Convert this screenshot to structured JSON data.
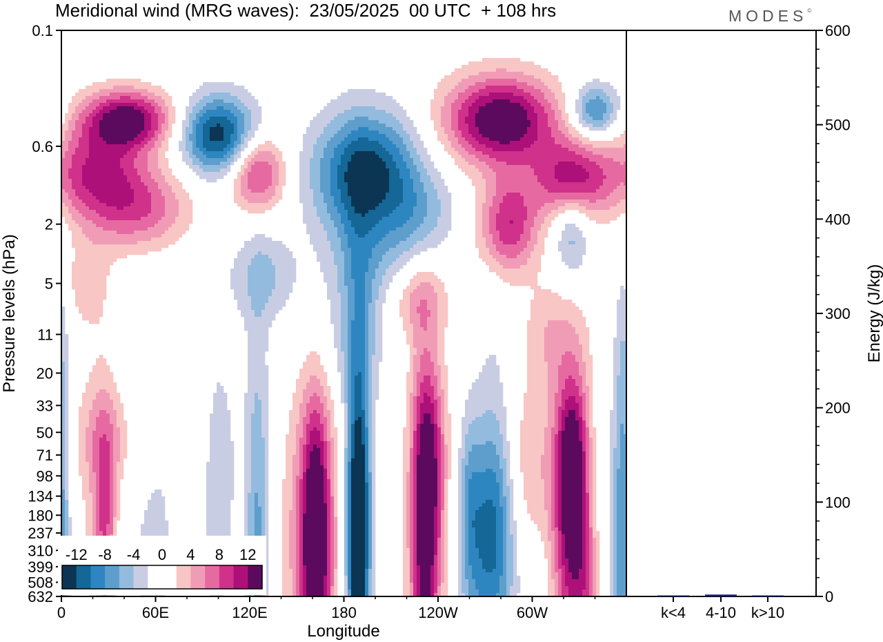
{
  "title": "Meridional wind (MRG waves):  23/05/2025  00 UTC  + 108 hrs",
  "logo": "MODES",
  "logo_mark": "©",
  "colors": {
    "neg": [
      "#0b3553",
      "#146796",
      "#2e86c1",
      "#5d9ecd",
      "#93bbdd",
      "#c9cde4"
    ],
    "pos": [
      "#f8c6c4",
      "#f19cb6",
      "#e66aa1",
      "#d0318a",
      "#ad1078",
      "#5c0a5e"
    ],
    "bar": "#1a1f6e"
  },
  "chart_data": [
    {
      "type": "heatmap",
      "title": "Meridional wind (MRG waves):  23/05/2025  00 UTC  + 108 hrs",
      "xlabel": "Longitude",
      "ylabel": "Pressure levels (hPa)",
      "x_ticks": [
        "0",
        "60E",
        "120E",
        "180",
        "120W",
        "60W"
      ],
      "x_tick_degrees": [
        0,
        60,
        120,
        180,
        240,
        300
      ],
      "x_range_degrees": [
        0,
        360
      ],
      "y_ticks": [
        "0.1",
        "0.6",
        "2",
        "5",
        "11",
        "20",
        "33",
        "50",
        "71",
        "98",
        "134",
        "180",
        "237",
        "310",
        "399",
        "508",
        "632"
      ],
      "colorbar_ticks": [
        "-12",
        "-8",
        "-4",
        "0",
        "4",
        "8",
        "12"
      ],
      "blobs": [
        {
          "lon": 42,
          "lev": 0.4,
          "w": 34,
          "h": 0.55,
          "v": 14
        },
        {
          "lon": 100,
          "lev": 0.5,
          "w": 28,
          "h": 0.7,
          "v": -13
        },
        {
          "lon": 20,
          "lev": 0.9,
          "w": 38,
          "h": 0.8,
          "v": 9
        },
        {
          "lon": 125,
          "lev": 0.9,
          "w": 20,
          "h": 0.7,
          "v": 10
        },
        {
          "lon": 195,
          "lev": 0.9,
          "w": 40,
          "h": 1.1,
          "v": -13
        },
        {
          "lon": 280,
          "lev": 0.4,
          "w": 42,
          "h": 0.8,
          "v": 15
        },
        {
          "lon": 325,
          "lev": 1.0,
          "w": 28,
          "h": 0.7,
          "v": 11
        },
        {
          "lon": 340,
          "lev": 0.35,
          "w": 18,
          "h": 0.5,
          "v": -9
        },
        {
          "lon": 50,
          "lev": 1.6,
          "w": 38,
          "h": 0.8,
          "v": 8
        },
        {
          "lon": 230,
          "lev": 1.8,
          "w": 24,
          "h": 0.8,
          "v": -4
        },
        {
          "lon": 285,
          "lev": 2.0,
          "w": 22,
          "h": 0.9,
          "v": 10
        },
        {
          "lon": 325,
          "lev": 2.3,
          "w": 14,
          "h": 0.9,
          "v": -6
        },
        {
          "lon": 15,
          "lev": 5.0,
          "w": 18,
          "h": 0.8,
          "v": 3
        },
        {
          "lon": 195,
          "lev": 4.0,
          "w": 34,
          "h": 1.2,
          "v": -5
        },
        {
          "lon": 225,
          "lev": 6.5,
          "w": 24,
          "h": 0.7,
          "v": 5
        },
        {
          "lon": 130,
          "lev": 4.5,
          "w": 25,
          "h": 0.8,
          "v": -4
        },
        {
          "lon": 310,
          "lev": 11.0,
          "w": 18,
          "h": 0.9,
          "v": 3
        },
        {
          "lon": 180,
          "lev": 14.0,
          "w": 30,
          "h": 0.9,
          "v": -2
        },
        {
          "lon": 30,
          "lev": 55.0,
          "w": 25,
          "h": 1.0,
          "v": 4
        },
        {
          "lon": 235,
          "lev": 50.0,
          "w": 14,
          "h": 1.4,
          "v": 3
        },
        {
          "lon": 325,
          "lev": 70.0,
          "w": 12,
          "h": 1.4,
          "v": 6
        },
        {
          "lon": 190,
          "lev": 60.0,
          "w": 12,
          "h": 3.2,
          "v": -2
        },
        {
          "lon": 25,
          "lev": 180.0,
          "w": 14,
          "h": 3.5,
          "v": 3
        },
        {
          "lon": 28,
          "lev": 240.0,
          "w": 8,
          "h": 1.8,
          "v": 6
        },
        {
          "lon": 160,
          "lev": 260.0,
          "w": 22,
          "h": 3.0,
          "v": 7
        },
        {
          "lon": 162,
          "lev": 260.0,
          "w": 10,
          "h": 2.4,
          "v": 12
        },
        {
          "lon": 189,
          "lev": 230.0,
          "w": 11,
          "h": 4.5,
          "v": -7
        },
        {
          "lon": 189,
          "lev": 260.0,
          "w": 7,
          "h": 2.4,
          "v": -11
        },
        {
          "lon": 232,
          "lev": 260.0,
          "w": 14,
          "h": 4.0,
          "v": 5
        },
        {
          "lon": 230,
          "lev": 300.0,
          "w": 9,
          "h": 3.0,
          "v": 7
        },
        {
          "lon": 236,
          "lev": 140.0,
          "w": 10,
          "h": 2.0,
          "v": 6
        },
        {
          "lon": 275,
          "lev": 240.0,
          "w": 20,
          "h": 1.9,
          "v": -8
        },
        {
          "lon": 275,
          "lev": 180.0,
          "w": 14,
          "h": 4.0,
          "v": -3
        },
        {
          "lon": 260,
          "lev": 130.0,
          "w": 8,
          "h": 1.6,
          "v": -4
        },
        {
          "lon": 326,
          "lev": 180.0,
          "w": 14,
          "h": 2.4,
          "v": 9
        },
        {
          "lon": 326,
          "lev": 220.0,
          "w": 22,
          "h": 4.0,
          "v": 4
        },
        {
          "lon": 296,
          "lev": 100.0,
          "w": 18,
          "h": 1.8,
          "v": 4
        },
        {
          "lon": 125,
          "lev": 330.0,
          "w": 9,
          "h": 4.0,
          "v": -6
        },
        {
          "lon": 100,
          "lev": 330.0,
          "w": 9,
          "h": 3.0,
          "v": -3
        },
        {
          "lon": 105,
          "lev": 110.0,
          "w": 10,
          "h": 1.8,
          "v": -3
        },
        {
          "lon": 55,
          "lev": 250.0,
          "w": 25,
          "h": 6.0,
          "v": -2
        },
        {
          "lon": 100,
          "lev": 260.0,
          "w": 40,
          "h": 6.0,
          "v": -1.5
        },
        {
          "lon": 105,
          "lev": 270.0,
          "w": 14,
          "h": 3.0,
          "v": 3
        },
        {
          "lon": 0,
          "lev": 330.0,
          "w": 7,
          "h": 6.0,
          "v": -4
        },
        {
          "lon": 356,
          "lev": 260.0,
          "w": 8,
          "h": 4.0,
          "v": -5
        },
        {
          "lon": 340,
          "lev": 120.0,
          "w": 12,
          "h": 2.0,
          "v": -3
        },
        {
          "lon": 262,
          "lev": 600.0,
          "w": 12,
          "h": 2.0,
          "v": -2
        },
        {
          "lon": 305,
          "lev": 560.0,
          "w": 12,
          "h": 1.5,
          "v": -2
        },
        {
          "lon": 335,
          "lev": 580.0,
          "w": 10,
          "h": 1.6,
          "v": 3
        }
      ]
    },
    {
      "type": "bar",
      "categories": [
        "k<4",
        "4-10",
        "k>10"
      ],
      "values": [
        0,
        2,
        0
      ],
      "ylabel": "Energy (J/kg)",
      "ylim": [
        0,
        600
      ],
      "y_ticks": [
        "0",
        "100",
        "200",
        "300",
        "400",
        "500",
        "600"
      ]
    }
  ]
}
